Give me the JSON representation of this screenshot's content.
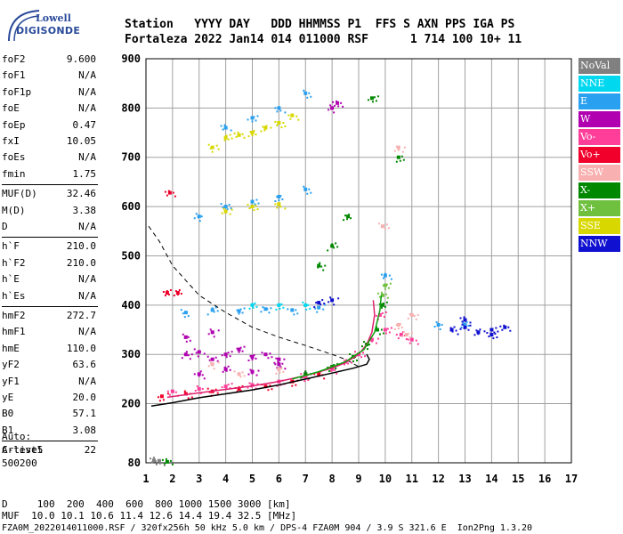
{
  "logo": {
    "line1": "Lowell",
    "line2": "DIGISONDE"
  },
  "header": {
    "line1": "Station   YYYY DAY   DDD HHMMSS P1  FFS S AXN PPS IGA PS",
    "line2": "Fortaleza 2022 Jan14 014 011000 RSF      1 714 100 10+ 11"
  },
  "params": {
    "group1": [
      {
        "label": "foF2",
        "value": "9.600"
      },
      {
        "label": "foF1",
        "value": "N/A"
      },
      {
        "label": "foF1p",
        "value": "N/A"
      },
      {
        "label": "foE",
        "value": "N/A"
      },
      {
        "label": "foEp",
        "value": "0.47"
      },
      {
        "label": "fxI",
        "value": "10.05"
      },
      {
        "label": "foEs",
        "value": "N/A"
      },
      {
        "label": "fmin",
        "value": "1.75"
      }
    ],
    "group2": [
      {
        "label": "MUF(D)",
        "value": "32.46"
      },
      {
        "label": "M(D)",
        "value": "3.38"
      },
      {
        "label": "D",
        "value": "N/A"
      }
    ],
    "group3": [
      {
        "label": "h`F",
        "value": "210.0"
      },
      {
        "label": "h`F2",
        "value": "210.0"
      },
      {
        "label": "h`E",
        "value": "N/A"
      },
      {
        "label": "h`Es",
        "value": "N/A"
      }
    ],
    "group4": [
      {
        "label": "hmF2",
        "value": "272.7"
      },
      {
        "label": "hmF1",
        "value": "N/A"
      },
      {
        "label": "hmE",
        "value": "110.0"
      },
      {
        "label": "yF2",
        "value": "63.6"
      },
      {
        "label": "yF1",
        "value": "N/A"
      },
      {
        "label": "yE",
        "value": "20.0"
      },
      {
        "label": "B0",
        "value": "57.1"
      },
      {
        "label": "B1",
        "value": "3.08"
      }
    ],
    "group5": [
      {
        "label": "C-level",
        "value": "22"
      }
    ]
  },
  "auto": {
    "line1": "Auto:",
    "line2": "Artist5",
    "line3": "500200"
  },
  "footer": {
    "line1": "D     100  200  400  600  800 1000 1500 3000 [km]",
    "line2": "MUF  10.0 10.1 10.6 11.4 12.6 14.4 19.4 32.5 [MHz]",
    "line3": "FZA0M_2022014011000.RSF / 320fx256h 50 kHz 5.0 km / DPS-4 FZA0M 904 / 3.9 S 321.6 E  Ion2Png 1.3.20"
  },
  "legend": [
    {
      "label": "NoVal",
      "color": "#808080"
    },
    {
      "label": "NNE",
      "color": "#00d8f0"
    },
    {
      "label": "E",
      "color": "#2aa0f0"
    },
    {
      "label": "W",
      "color": "#b000b0"
    },
    {
      "label": "Vo-",
      "color": "#ff3e9a"
    },
    {
      "label": "Vo+",
      "color": "#f0002a"
    },
    {
      "label": "SSW",
      "color": "#f8b0b0"
    },
    {
      "label": "X-",
      "color": "#008800"
    },
    {
      "label": "X+",
      "color": "#70c040"
    },
    {
      "label": "SSE",
      "color": "#d8d800"
    },
    {
      "label": "NNW",
      "color": "#1010d0"
    }
  ],
  "chart_data": {
    "type": "scatter",
    "title": "",
    "xlabel": "",
    "ylabel": "",
    "xlim": [
      1,
      17
    ],
    "ylim": [
      80,
      900
    ],
    "x_ticks": [
      1,
      2,
      3,
      4,
      5,
      6,
      7,
      8,
      9,
      10,
      11,
      12,
      13,
      14,
      15,
      16,
      17
    ],
    "y_ticks": [
      80,
      200,
      300,
      400,
      500,
      600,
      700,
      800,
      900
    ],
    "grid": true,
    "series": [
      {
        "name": "W",
        "color": "#b000b0",
        "points": [
          [
            2.5,
            300
          ],
          [
            3.0,
            305
          ],
          [
            3.5,
            290
          ],
          [
            4.0,
            300
          ],
          [
            4.5,
            310
          ],
          [
            5.0,
            295
          ],
          [
            5.5,
            300
          ],
          [
            6.0,
            290
          ],
          [
            3.0,
            260
          ],
          [
            4.0,
            270
          ],
          [
            5.0,
            265
          ],
          [
            6.0,
            280
          ],
          [
            2.5,
            335
          ],
          [
            3.5,
            345
          ],
          [
            8.0,
            800
          ],
          [
            8.2,
            810
          ],
          [
            7.0,
            260
          ]
        ]
      },
      {
        "name": "Vo-",
        "color": "#ff3e9a",
        "points": [
          [
            2.0,
            225
          ],
          [
            3.0,
            230
          ],
          [
            4.0,
            235
          ],
          [
            5.0,
            238
          ],
          [
            6.0,
            245
          ],
          [
            7.0,
            255
          ],
          [
            8.0,
            270
          ],
          [
            8.5,
            285
          ],
          [
            9.0,
            300
          ],
          [
            9.5,
            330
          ],
          [
            9.8,
            380
          ],
          [
            10.0,
            350
          ],
          [
            10.6,
            340
          ],
          [
            11.0,
            330
          ]
        ]
      },
      {
        "name": "Vo+",
        "color": "#f0002a",
        "points": [
          [
            1.6,
            215
          ],
          [
            2.5,
            220
          ],
          [
            3.5,
            225
          ],
          [
            4.5,
            230
          ],
          [
            5.5,
            235
          ],
          [
            6.5,
            245
          ],
          [
            7.5,
            260
          ],
          [
            1.8,
            425
          ],
          [
            2.2,
            425
          ],
          [
            1.9,
            628
          ]
        ]
      },
      {
        "name": "X-",
        "color": "#008800",
        "points": [
          [
            7.0,
            260
          ],
          [
            8.0,
            275
          ],
          [
            8.8,
            295
          ],
          [
            9.3,
            320
          ],
          [
            9.7,
            350
          ],
          [
            9.9,
            400
          ],
          [
            7.5,
            480
          ],
          [
            8.0,
            520
          ],
          [
            8.6,
            580
          ],
          [
            1.8,
            82
          ],
          [
            10.5,
            700
          ],
          [
            9.5,
            820
          ]
        ]
      },
      {
        "name": "X+",
        "color": "#70c040",
        "points": [
          [
            9.9,
            420
          ],
          [
            10.0,
            440
          ]
        ]
      },
      {
        "name": "SSW",
        "color": "#f8b0b0",
        "points": [
          [
            3.5,
            280
          ],
          [
            4.5,
            260
          ],
          [
            6.0,
            270
          ],
          [
            10.5,
            360
          ],
          [
            10.8,
            340
          ],
          [
            11.0,
            380
          ],
          [
            9.9,
            560
          ],
          [
            10.5,
            720
          ]
        ]
      },
      {
        "name": "E",
        "color": "#2aa0f0",
        "points": [
          [
            2.5,
            385
          ],
          [
            3.5,
            390
          ],
          [
            4.5,
            388
          ],
          [
            5.5,
            392
          ],
          [
            6.5,
            390
          ],
          [
            7.5,
            395
          ],
          [
            3.0,
            580
          ],
          [
            4.0,
            600
          ],
          [
            5.0,
            610
          ],
          [
            6.0,
            620
          ],
          [
            7.0,
            635
          ],
          [
            4.0,
            760
          ],
          [
            5.0,
            780
          ],
          [
            6.0,
            800
          ],
          [
            7.0,
            830
          ],
          [
            10.0,
            460
          ],
          [
            12.0,
            360
          ],
          [
            13.0,
            360
          ]
        ]
      },
      {
        "name": "NNE",
        "color": "#00d8f0",
        "points": [
          [
            5.0,
            400
          ],
          [
            6.0,
            400
          ],
          [
            7.0,
            400
          ]
        ]
      },
      {
        "name": "SSE",
        "color": "#d8d800",
        "points": [
          [
            3.5,
            720
          ],
          [
            4.0,
            740
          ],
          [
            4.5,
            745
          ],
          [
            5.0,
            750
          ],
          [
            5.5,
            760
          ],
          [
            6.0,
            770
          ],
          [
            6.5,
            785
          ],
          [
            4.0,
            590
          ],
          [
            5.0,
            600
          ],
          [
            6.0,
            605
          ]
        ]
      },
      {
        "name": "NNW",
        "color": "#1010d0",
        "points": [
          [
            7.5,
            405
          ],
          [
            8.0,
            410
          ],
          [
            12.5,
            350
          ],
          [
            13.0,
            355
          ],
          [
            13.5,
            345
          ],
          [
            14.0,
            350
          ],
          [
            14.5,
            355
          ],
          [
            13.0,
            370
          ],
          [
            14.0,
            340
          ]
        ]
      },
      {
        "name": "NoVal",
        "color": "#808080",
        "points": [
          [
            1.3,
            85
          ],
          [
            1.5,
            84
          ]
        ]
      }
    ],
    "lines": [
      {
        "name": "virtual-height-trace",
        "color": "#000000",
        "style": "solid",
        "points": [
          [
            1.2,
            195
          ],
          [
            2,
            202
          ],
          [
            3,
            212
          ],
          [
            4,
            220
          ],
          [
            5,
            228
          ],
          [
            6,
            238
          ],
          [
            7,
            250
          ],
          [
            8,
            262
          ],
          [
            8.8,
            272
          ],
          [
            9.3,
            280
          ],
          [
            9.4,
            290
          ],
          [
            9.3,
            300
          ]
        ]
      },
      {
        "name": "true-height-profile",
        "color": "#000000",
        "style": "dashed",
        "points": [
          [
            1.1,
            560
          ],
          [
            1.5,
            530
          ],
          [
            2,
            480
          ],
          [
            3,
            420
          ],
          [
            4,
            385
          ],
          [
            5,
            355
          ],
          [
            6,
            335
          ],
          [
            7,
            318
          ],
          [
            8,
            300
          ],
          [
            8.5,
            290
          ],
          [
            9,
            275
          ]
        ]
      },
      {
        "name": "F2-trace-magenta",
        "color": "#e0206e",
        "style": "solid",
        "points": [
          [
            1.8,
            213
          ],
          [
            3,
            222
          ],
          [
            4,
            229
          ],
          [
            5,
            236
          ],
          [
            6,
            245
          ],
          [
            7,
            257
          ],
          [
            8,
            272
          ],
          [
            8.5,
            283
          ],
          [
            9,
            300
          ],
          [
            9.3,
            320
          ],
          [
            9.5,
            345
          ],
          [
            9.6,
            380
          ],
          [
            9.55,
            410
          ]
        ]
      },
      {
        "name": "F2-trace-green",
        "color": "#10a010",
        "style": "solid",
        "points": [
          [
            6.5,
            250
          ],
          [
            7.5,
            265
          ],
          [
            8.5,
            285
          ],
          [
            9.2,
            310
          ],
          [
            9.6,
            345
          ],
          [
            9.8,
            390
          ],
          [
            9.85,
            420
          ]
        ]
      }
    ]
  }
}
